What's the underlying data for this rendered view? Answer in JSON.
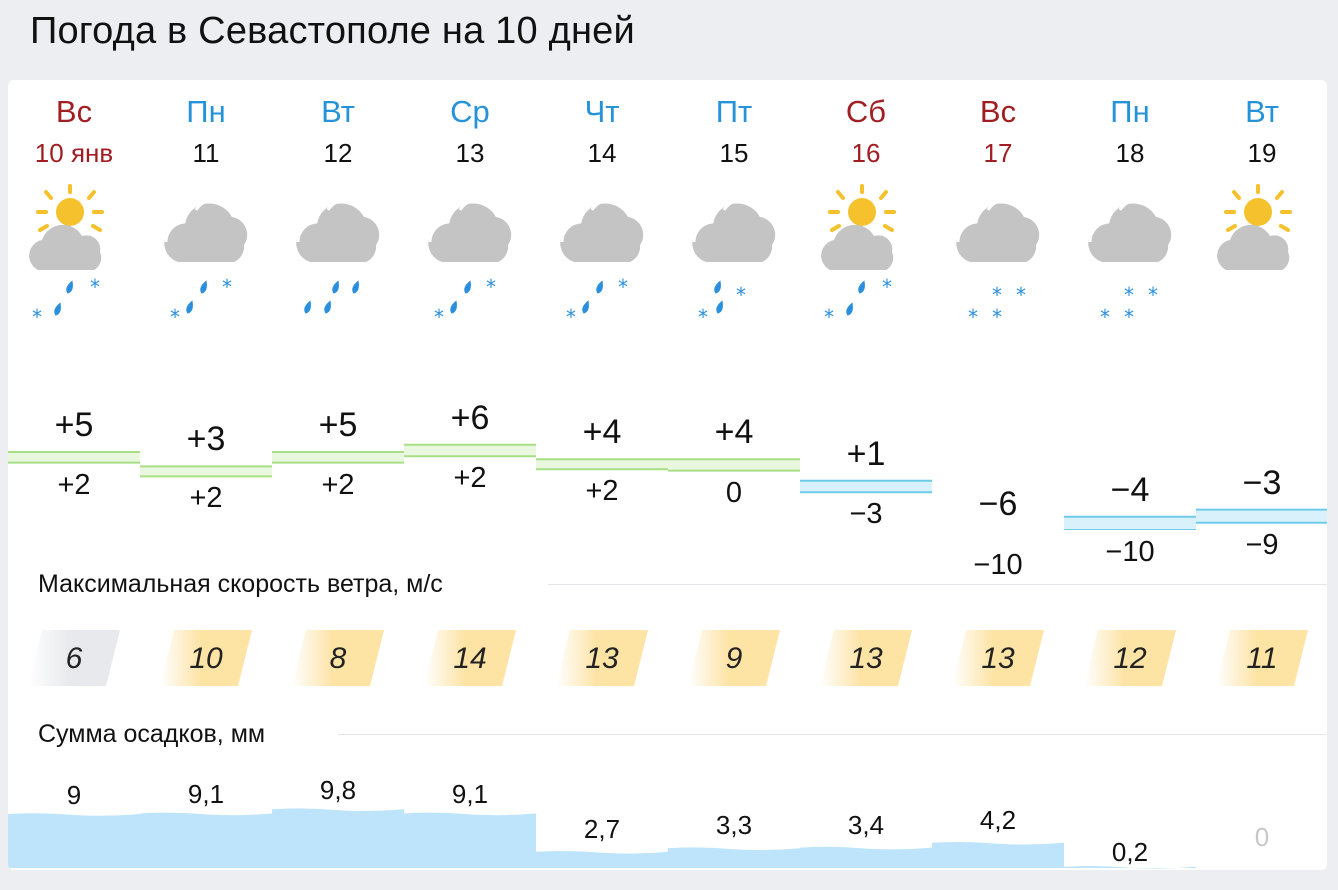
{
  "page_title": "Погода в Севастополе на 10 дней",
  "days": [
    {
      "dow": "Вс",
      "date": "10 янв",
      "weekend": true,
      "icon": "sun-cloud-snow-rain-icon",
      "tmax": "+5",
      "tmin": "+2",
      "wind": "6",
      "wind_level": "calm",
      "precip": "9"
    },
    {
      "dow": "Пн",
      "date": "11",
      "weekend": false,
      "icon": "cloud-snow-rain-icon",
      "tmax": "+3",
      "tmin": "+2",
      "wind": "10",
      "wind_level": "strong",
      "precip": "9,1"
    },
    {
      "dow": "Вт",
      "date": "12",
      "weekend": false,
      "icon": "cloud-rain-icon",
      "tmax": "+5",
      "tmin": "+2",
      "wind": "8",
      "wind_level": "strong",
      "precip": "9,8"
    },
    {
      "dow": "Ср",
      "date": "13",
      "weekend": false,
      "icon": "cloud-snow-rain-icon",
      "tmax": "+6",
      "tmin": "+2",
      "wind": "14",
      "wind_level": "strong",
      "precip": "9,1"
    },
    {
      "dow": "Чт",
      "date": "14",
      "weekend": false,
      "icon": "cloud-snow-rain-icon",
      "tmax": "+4",
      "tmin": "+2",
      "wind": "13",
      "wind_level": "strong",
      "precip": "2,7"
    },
    {
      "dow": "Пт",
      "date": "15",
      "weekend": false,
      "icon": "cloud-snow-rain-icon",
      "tmax": "+4",
      "tmin": "0",
      "wind": "9",
      "wind_level": "strong",
      "precip": "3,3"
    },
    {
      "dow": "Сб",
      "date": "16",
      "weekend": true,
      "icon": "sun-cloud-snow-rain-icon",
      "tmax": "+1",
      "tmin": "−3",
      "wind": "13",
      "wind_level": "strong",
      "precip": "3,4"
    },
    {
      "dow": "Вс",
      "date": "17",
      "weekend": true,
      "icon": "cloud-snow-icon",
      "tmax": "−6",
      "tmin": "−10",
      "wind": "13",
      "wind_level": "strong",
      "precip": "4,2"
    },
    {
      "dow": "Пн",
      "date": "18",
      "weekend": false,
      "icon": "cloud-snow-icon",
      "tmax": "−4",
      "tmin": "−10",
      "wind": "12",
      "wind_level": "strong",
      "precip": "0,2"
    },
    {
      "dow": "Вт",
      "date": "19",
      "weekend": false,
      "icon": "sun-cloud-icon",
      "tmax": "−3",
      "tmin": "−9",
      "wind": "11",
      "wind_level": "strong",
      "precip": "0"
    }
  ],
  "wind_title": "Максимальная скорость ветра, м/с",
  "precip_title": "Сумма осадков, мм",
  "colors": {
    "weekend": "#a01e21",
    "weekday": "#2693d8",
    "warm_band": "#e9f7de",
    "warm_line": "#a8df86",
    "cold_band": "#d8f1fa",
    "cold_line": "#6fcbea",
    "wind_strong": "#fde3a4",
    "wind_calm": "#e8e9ec",
    "precip_fill": "#bde4fb",
    "sun": "#f5c22e",
    "cloud": "#c4c4c4",
    "drop": "#2a8fdc"
  }
}
